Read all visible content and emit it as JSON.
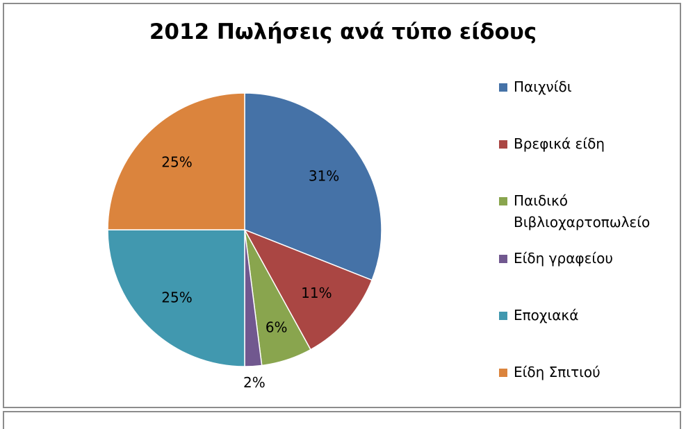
{
  "chart_data": {
    "type": "pie",
    "title": "2012 Πωλήσεις ανά τύπο είδους",
    "start_angle": "12 o'clock",
    "direction": "clockwise",
    "legend_position": "right",
    "slices": [
      {
        "label": "Παιχνίδι",
        "value": 31,
        "display": "31%",
        "color": "#4572a7"
      },
      {
        "label": "Βρεφικά είδη",
        "value": 11,
        "display": "11%",
        "color": "#aa4643"
      },
      {
        "label": "Παιδικό Βιβλιοχαρτοπωλείο",
        "value": 6,
        "display": "6%",
        "color": "#89a54e"
      },
      {
        "label": "Είδη γραφείου",
        "value": 2,
        "display": "2%",
        "color": "#71588f"
      },
      {
        "label": "Εποχιακά",
        "value": 25,
        "display": "25%",
        "color": "#4198af"
      },
      {
        "label": "Είδη Σπιτιού",
        "value": 25,
        "display": "25%",
        "color": "#db843d"
      }
    ]
  }
}
